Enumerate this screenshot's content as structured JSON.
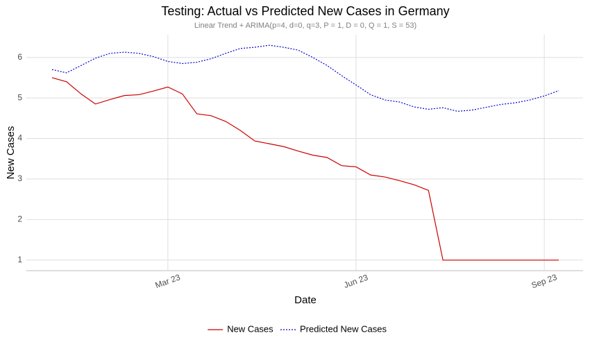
{
  "chart_data": {
    "type": "line",
    "title": "Testing: Actual vs Predicted New Cases in Germany",
    "subtitle": "Linear Trend + ARIMA(p=4, d=0, q=3, P = 1, D = 0, Q = 1, S = 53)",
    "x_label": "Date",
    "y_label": "New Cases",
    "categories": [
      null,
      null,
      null,
      null,
      null,
      null,
      null,
      null,
      "Mar 23",
      null,
      null,
      null,
      null,
      null,
      null,
      null,
      null,
      null,
      null,
      null,
      null,
      "Jun 23",
      null,
      null,
      null,
      null,
      null,
      null,
      null,
      null,
      null,
      null,
      null,
      null,
      "Sep 23",
      null
    ],
    "series": [
      {
        "name": "New Cases",
        "color": "#cc0000",
        "linestyle": "solid",
        "values": [
          5.5,
          5.4,
          5.1,
          4.85,
          4.96,
          5.06,
          5.08,
          5.17,
          5.27,
          5.1,
          4.61,
          4.56,
          4.42,
          4.2,
          3.94,
          3.87,
          3.8,
          3.69,
          3.59,
          3.53,
          3.33,
          3.3,
          3.1,
          3.05,
          2.96,
          2.86,
          2.72,
          1.0,
          1.0,
          1.0,
          1.0,
          1.0,
          1.0,
          1.0,
          1.0,
          1.0
        ]
      },
      {
        "name": "Predicted New Cases",
        "color": "#0000cc",
        "linestyle": "dotted",
        "values": [
          5.7,
          5.62,
          5.8,
          5.98,
          6.1,
          6.13,
          6.1,
          6.02,
          5.9,
          5.85,
          5.88,
          5.97,
          6.1,
          6.22,
          6.25,
          6.3,
          6.25,
          6.18,
          6.0,
          5.8,
          5.55,
          5.32,
          5.08,
          4.95,
          4.9,
          4.78,
          4.72,
          4.76,
          4.67,
          4.7,
          4.77,
          4.84,
          4.88,
          4.95,
          5.05,
          5.18
        ]
      }
    ],
    "ylim": [
      0.74,
      6.56
    ],
    "yticks": [
      1,
      2,
      3,
      4,
      5,
      6
    ],
    "grid": true,
    "legend_position": "bottom"
  }
}
